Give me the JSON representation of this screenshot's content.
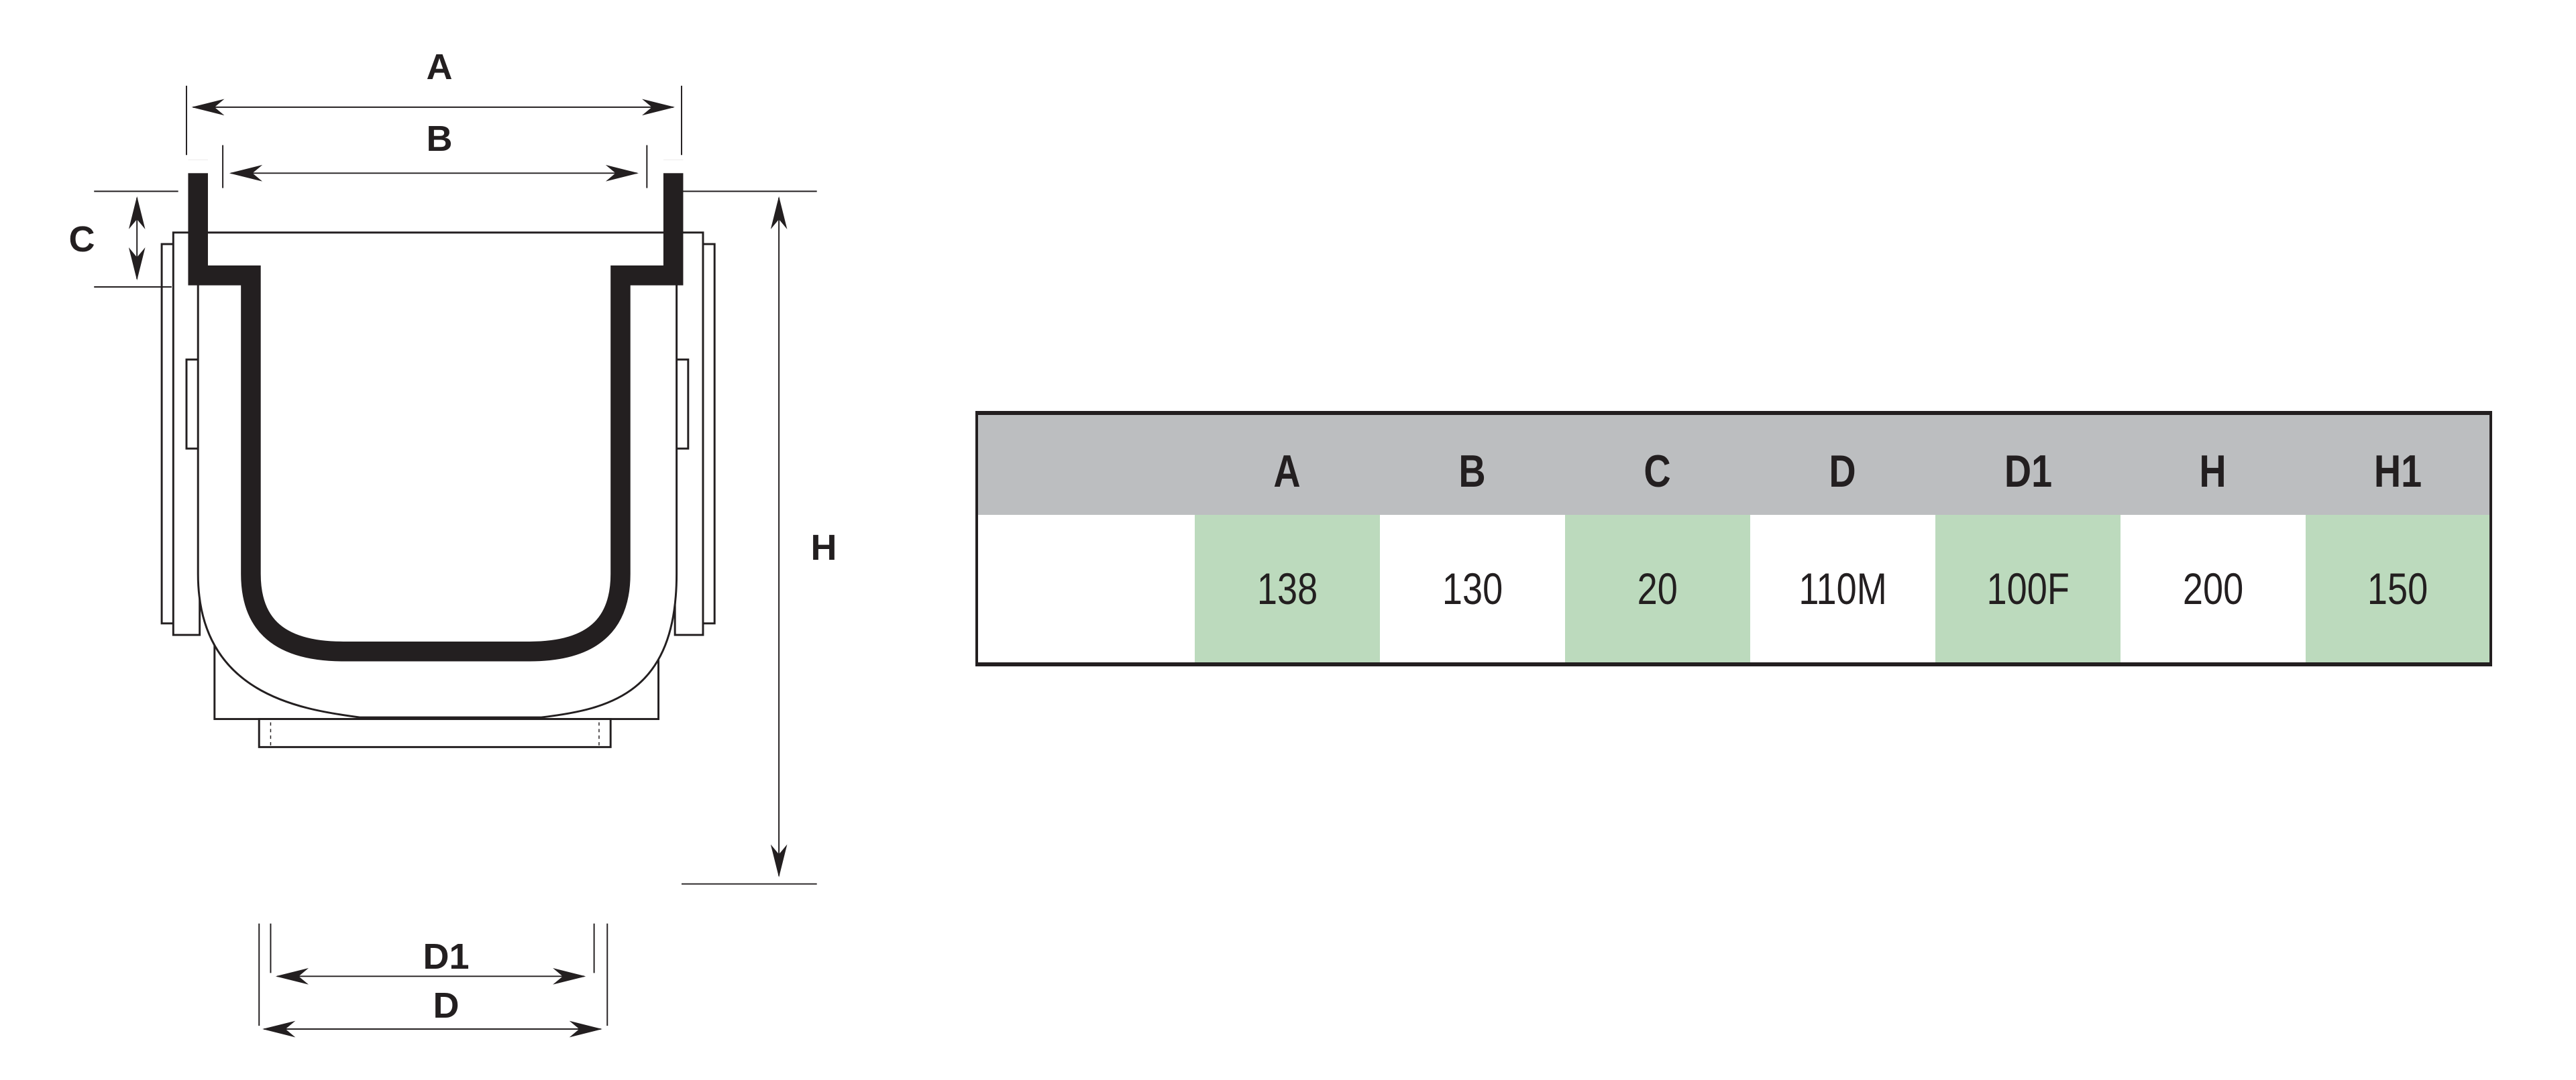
{
  "diagram": {
    "labels": {
      "A": "A",
      "B": "B",
      "C": "C",
      "H": "H",
      "D1": "D1",
      "D": "D"
    },
    "line_color": "#231f20"
  },
  "table": {
    "header_color": "#bcbec0",
    "highlight_color": "#bcdabd",
    "columns": [
      {
        "header": "A",
        "value": "138",
        "highlight": true
      },
      {
        "header": "B",
        "value": "130",
        "highlight": false
      },
      {
        "header": "C",
        "value": "20",
        "highlight": true
      },
      {
        "header": "D",
        "value": "110M",
        "highlight": false
      },
      {
        "header": "D1",
        "value": "100F",
        "highlight": true
      },
      {
        "header": "H",
        "value": "200",
        "highlight": false
      },
      {
        "header": "H1",
        "value": "150",
        "highlight": true
      }
    ]
  }
}
